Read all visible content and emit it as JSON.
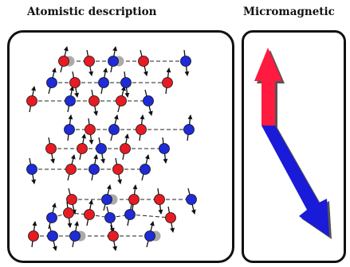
{
  "titles": {
    "atomistic": "Atomistic description",
    "micromagnetic": "Micromagnetic"
  },
  "colors": {
    "sublattice_a": "#e51c23",
    "sublattice_b": "#1f2bd6",
    "vacancy": "#aaaaaa",
    "macrospin_up": "#ff1a40",
    "macrospin_down": "#1a1ad9",
    "outline": "#111111"
  },
  "icons": [
    "atom-site-icon",
    "spin-arrow-icon",
    "vacancy-icon",
    "macrospin-arrow-icon"
  ]
}
